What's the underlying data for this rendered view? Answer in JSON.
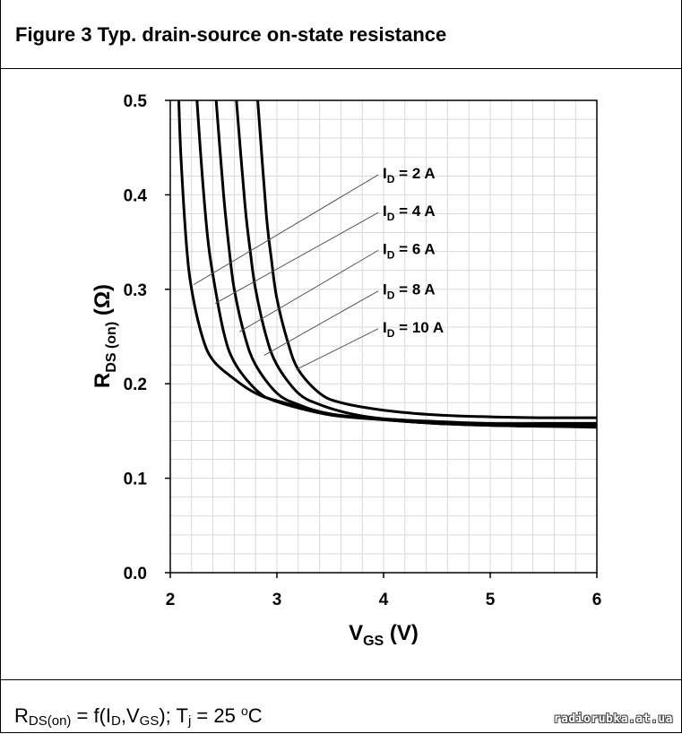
{
  "figure": {
    "title": "Figure 3 Typ. drain-source on-state resistance",
    "caption": {
      "r": "R",
      "r_sub": "DS(on)",
      "mid1": " = f(I",
      "id_sub": "D",
      "mid2": ",V",
      "vgs_sub": "GS",
      "mid3": "); T",
      "tj_sub": "j",
      "mid4": " = 25 ",
      "deg_sup": "o",
      "unit": "C"
    },
    "watermark": "radiorubka.at.ua"
  },
  "chart_data": {
    "type": "line",
    "xlabel": {
      "main": "V",
      "sub": "GS",
      "unit": " (V)"
    },
    "ylabel": {
      "main": "R",
      "sub": "DS (on)",
      "unit": " (Ω)"
    },
    "xlim": [
      2,
      6
    ],
    "ylim": [
      0,
      0.5
    ],
    "x_ticks": [
      "2",
      "3",
      "4",
      "5",
      "6"
    ],
    "y_ticks": [
      "0.0",
      "0.1",
      "0.2",
      "0.3",
      "0.4",
      "0.5"
    ],
    "grid": true,
    "colors": {
      "line": "#000000",
      "grid": "#d9d9d9",
      "leader": "#555555"
    },
    "series": [
      {
        "name": "I_D = 2 A",
        "label_main": "I",
        "label_sub": "D",
        "label_rest": " = 2 A",
        "x": [
          2.08,
          2.1,
          2.15,
          2.2,
          2.3,
          2.4,
          2.6,
          2.8,
          3.0,
          3.5,
          4.0,
          4.5,
          5.0,
          5.5,
          6.0
        ],
        "y": [
          0.5,
          0.44,
          0.35,
          0.3,
          0.25,
          0.225,
          0.205,
          0.19,
          0.182,
          0.168,
          0.162,
          0.158,
          0.156,
          0.155,
          0.154
        ],
        "pointer": [
          2.22,
          0.305
        ],
        "label_anchor": [
          3.95,
          0.425
        ]
      },
      {
        "name": "I_D = 4 A",
        "label_main": "I",
        "label_sub": "D",
        "label_rest": " = 4 A",
        "x": [
          2.25,
          2.3,
          2.35,
          2.4,
          2.5,
          2.6,
          2.8,
          3.0,
          3.5,
          4.0,
          4.5,
          5.0,
          5.5,
          6.0
        ],
        "y": [
          0.5,
          0.42,
          0.355,
          0.315,
          0.255,
          0.223,
          0.194,
          0.181,
          0.167,
          0.162,
          0.158,
          0.156,
          0.155,
          0.155
        ],
        "pointer": [
          2.42,
          0.285
        ],
        "label_anchor": [
          3.95,
          0.385
        ]
      },
      {
        "name": "I_D = 6 A",
        "label_main": "I",
        "label_sub": "D",
        "label_rest": " = 6 A",
        "x": [
          2.43,
          2.5,
          2.55,
          2.6,
          2.7,
          2.8,
          3.0,
          3.2,
          3.5,
          4.0,
          4.5,
          5.0,
          5.5,
          6.0
        ],
        "y": [
          0.5,
          0.4,
          0.345,
          0.3,
          0.25,
          0.22,
          0.19,
          0.178,
          0.168,
          0.162,
          0.158,
          0.157,
          0.156,
          0.156
        ],
        "pointer": [
          2.65,
          0.255
        ],
        "label_anchor": [
          3.95,
          0.345
        ]
      },
      {
        "name": "I_D = 8 A",
        "label_main": "I",
        "label_sub": "D",
        "label_rest": " = 8 A",
        "x": [
          2.62,
          2.7,
          2.75,
          2.8,
          2.9,
          3.0,
          3.2,
          3.4,
          3.7,
          4.0,
          4.5,
          5.0,
          5.5,
          6.0
        ],
        "y": [
          0.5,
          0.39,
          0.34,
          0.3,
          0.25,
          0.22,
          0.19,
          0.178,
          0.168,
          0.163,
          0.16,
          0.158,
          0.158,
          0.158
        ],
        "pointer": [
          2.88,
          0.23
        ],
        "label_anchor": [
          3.95,
          0.302
        ]
      },
      {
        "name": "I_D = 10 A",
        "label_main": "I",
        "label_sub": "D",
        "label_rest": " = 10 A",
        "x": [
          2.82,
          2.9,
          2.95,
          3.0,
          3.1,
          3.2,
          3.4,
          3.6,
          4.0,
          4.5,
          5.0,
          5.5,
          6.0
        ],
        "y": [
          0.5,
          0.38,
          0.33,
          0.29,
          0.245,
          0.215,
          0.19,
          0.18,
          0.172,
          0.167,
          0.165,
          0.164,
          0.164
        ],
        "pointer": [
          3.18,
          0.215
        ],
        "label_anchor": [
          3.95,
          0.262
        ]
      }
    ]
  }
}
